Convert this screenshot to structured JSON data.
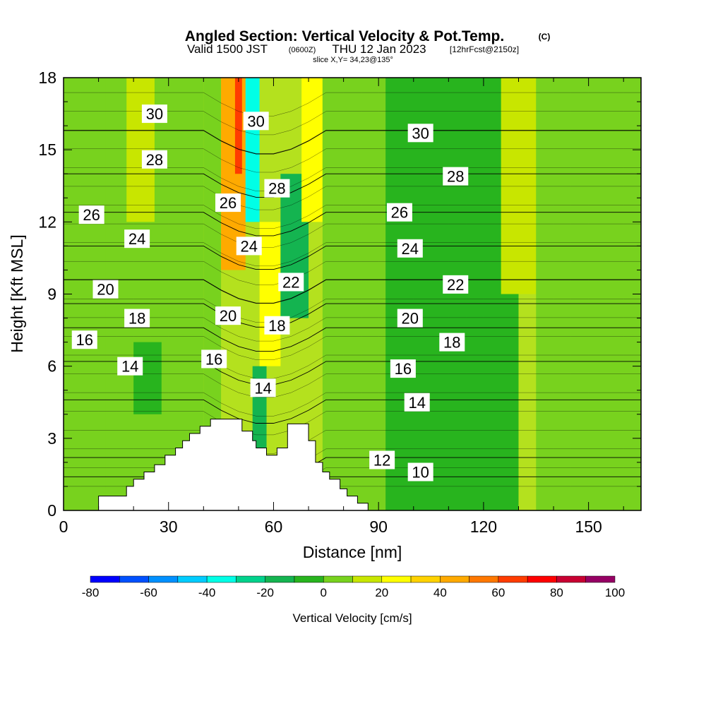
{
  "figure": {
    "title": "Angled Section: Vertical Velocity & Pot.Temp.",
    "copyright_mark": "(C)",
    "valid_prefix": "Valid 1500 JST",
    "valid_utc": "(0600Z)",
    "valid_date": "THU 12 Jan 2023",
    "forecast_info": "[12hrFcst@2150z]",
    "slice_info": "slice X,Y= 34,23@135°"
  },
  "chart_data": {
    "type": "heatmap",
    "xlabel": "Distance [nm]",
    "ylabel": "Height [Kft MSL]",
    "xlim": [
      0,
      165
    ],
    "ylim": [
      0,
      18
    ],
    "x_ticks": [
      0,
      30,
      60,
      90,
      120,
      150
    ],
    "y_ticks": [
      0,
      3,
      6,
      9,
      12,
      15,
      18
    ],
    "field": "Vertical Velocity",
    "colorbar": {
      "label": "Vertical Velocity [cm/s]",
      "tick_labels": [
        "-80",
        "-60",
        "-40",
        "-20",
        "0",
        "20",
        "40",
        "60",
        "80",
        "100"
      ],
      "levels": [
        -80,
        -70,
        -60,
        -50,
        -40,
        -30,
        -20,
        -10,
        0,
        10,
        20,
        30,
        40,
        50,
        60,
        70,
        80,
        90,
        100
      ],
      "colors": [
        "#0000ff",
        "#0050ff",
        "#0090ff",
        "#00ccff",
        "#00ffe6",
        "#00d28c",
        "#14b450",
        "#28b41e",
        "#78d21e",
        "#c8e600",
        "#ffff00",
        "#ffd200",
        "#ffaa00",
        "#ff7800",
        "#ff3c00",
        "#ff0000",
        "#c80032",
        "#960064",
        "#640096"
      ]
    },
    "terrain": {
      "x": [
        0,
        10,
        10,
        16,
        16,
        18,
        18,
        20,
        20,
        23,
        23,
        26,
        26,
        29,
        29,
        32,
        32,
        34,
        34,
        36,
        36,
        39,
        39,
        42,
        42,
        45,
        45,
        48,
        48,
        51,
        51,
        54,
        54,
        55,
        55,
        58,
        58,
        61,
        61,
        64,
        64,
        67,
        67,
        70,
        70,
        72,
        72,
        74,
        74,
        76,
        76,
        79,
        79,
        81,
        81,
        84,
        84,
        87,
        87,
        90,
        90
      ],
      "y": [
        0,
        0,
        0.6,
        0.6,
        0.6,
        0.6,
        1.0,
        1.0,
        1.3,
        1.3,
        1.6,
        1.6,
        1.9,
        1.9,
        2.3,
        2.3,
        2.6,
        2.6,
        2.9,
        2.9,
        3.2,
        3.2,
        3.5,
        3.5,
        3.8,
        3.8,
        3.8,
        3.8,
        3.8,
        3.8,
        3.3,
        3.3,
        2.9,
        2.9,
        2.6,
        2.6,
        2.3,
        2.3,
        2.6,
        2.6,
        3.6,
        3.6,
        3.6,
        3.6,
        2.9,
        2.9,
        2.0,
        2.0,
        1.6,
        1.6,
        1.3,
        1.3,
        0.9,
        0.9,
        0.6,
        0.6,
        0.3,
        0.3,
        0,
        0,
        0
      ]
    },
    "velocity_bands": [
      {
        "x": [
          0,
          12
        ],
        "y": [
          0,
          18
        ],
        "value": 0
      },
      {
        "x": [
          12,
          40
        ],
        "y": [
          0,
          18
        ],
        "value": 5
      },
      {
        "x": [
          20,
          28
        ],
        "y": [
          4,
          7
        ],
        "value": -10
      },
      {
        "x": [
          18,
          26
        ],
        "y": [
          12,
          18
        ],
        "value": 15
      },
      {
        "x": [
          40,
          45
        ],
        "y": [
          0,
          18
        ],
        "value": 0
      },
      {
        "x": [
          45,
          52
        ],
        "y": [
          10,
          18
        ],
        "value": 45
      },
      {
        "x": [
          49,
          51
        ],
        "y": [
          14,
          18
        ],
        "value": 65
      },
      {
        "x": [
          52,
          56
        ],
        "y": [
          12,
          18
        ],
        "value": -35
      },
      {
        "x": [
          54,
          58
        ],
        "y": [
          0,
          6
        ],
        "value": -20
      },
      {
        "x": [
          56,
          62
        ],
        "y": [
          6,
          12
        ],
        "value": 20
      },
      {
        "x": [
          62,
          70
        ],
        "y": [
          8,
          14
        ],
        "value": -15
      },
      {
        "x": [
          68,
          74
        ],
        "y": [
          12,
          18
        ],
        "value": 20
      },
      {
        "x": [
          74,
          92
        ],
        "y": [
          0,
          18
        ],
        "value": 5
      },
      {
        "x": [
          92,
          130
        ],
        "y": [
          0,
          18
        ],
        "value": -5
      },
      {
        "x": [
          125,
          135
        ],
        "y": [
          9,
          18
        ],
        "value": 15
      },
      {
        "x": [
          135,
          165
        ],
        "y": [
          0,
          18
        ],
        "value": 0
      }
    ],
    "potential_temperature_contours": {
      "label": "Pot.Temp.",
      "levels": [
        10,
        12,
        14,
        16,
        18,
        20,
        22,
        24,
        26,
        28,
        30
      ],
      "labels": [
        {
          "text": "30",
          "x": 26,
          "y": 16.5
        },
        {
          "text": "30",
          "x": 55,
          "y": 16.2
        },
        {
          "text": "30",
          "x": 102,
          "y": 15.7
        },
        {
          "text": "28",
          "x": 26,
          "y": 14.6
        },
        {
          "text": "28",
          "x": 61,
          "y": 13.4
        },
        {
          "text": "28",
          "x": 112,
          "y": 13.9
        },
        {
          "text": "26",
          "x": 8,
          "y": 12.3
        },
        {
          "text": "26",
          "x": 47,
          "y": 12.8
        },
        {
          "text": "26",
          "x": 96,
          "y": 12.4
        },
        {
          "text": "24",
          "x": 21,
          "y": 11.3
        },
        {
          "text": "24",
          "x": 53,
          "y": 11.0
        },
        {
          "text": "24",
          "x": 99,
          "y": 10.9
        },
        {
          "text": "22",
          "x": 65,
          "y": 9.5
        },
        {
          "text": "22",
          "x": 112,
          "y": 9.4
        },
        {
          "text": "20",
          "x": 12,
          "y": 9.2
        },
        {
          "text": "20",
          "x": 47,
          "y": 8.1
        },
        {
          "text": "20",
          "x": 99,
          "y": 8.0
        },
        {
          "text": "18",
          "x": 21,
          "y": 8.0
        },
        {
          "text": "18",
          "x": 61,
          "y": 7.7
        },
        {
          "text": "18",
          "x": 111,
          "y": 7.0
        },
        {
          "text": "16",
          "x": 6,
          "y": 7.1
        },
        {
          "text": "16",
          "x": 43,
          "y": 6.3
        },
        {
          "text": "16",
          "x": 97,
          "y": 5.9
        },
        {
          "text": "14",
          "x": 19,
          "y": 6.0
        },
        {
          "text": "14",
          "x": 57,
          "y": 5.1
        },
        {
          "text": "14",
          "x": 101,
          "y": 4.5
        },
        {
          "text": "12",
          "x": 91,
          "y": 2.1
        },
        {
          "text": "10",
          "x": 102,
          "y": 1.6
        }
      ]
    }
  }
}
